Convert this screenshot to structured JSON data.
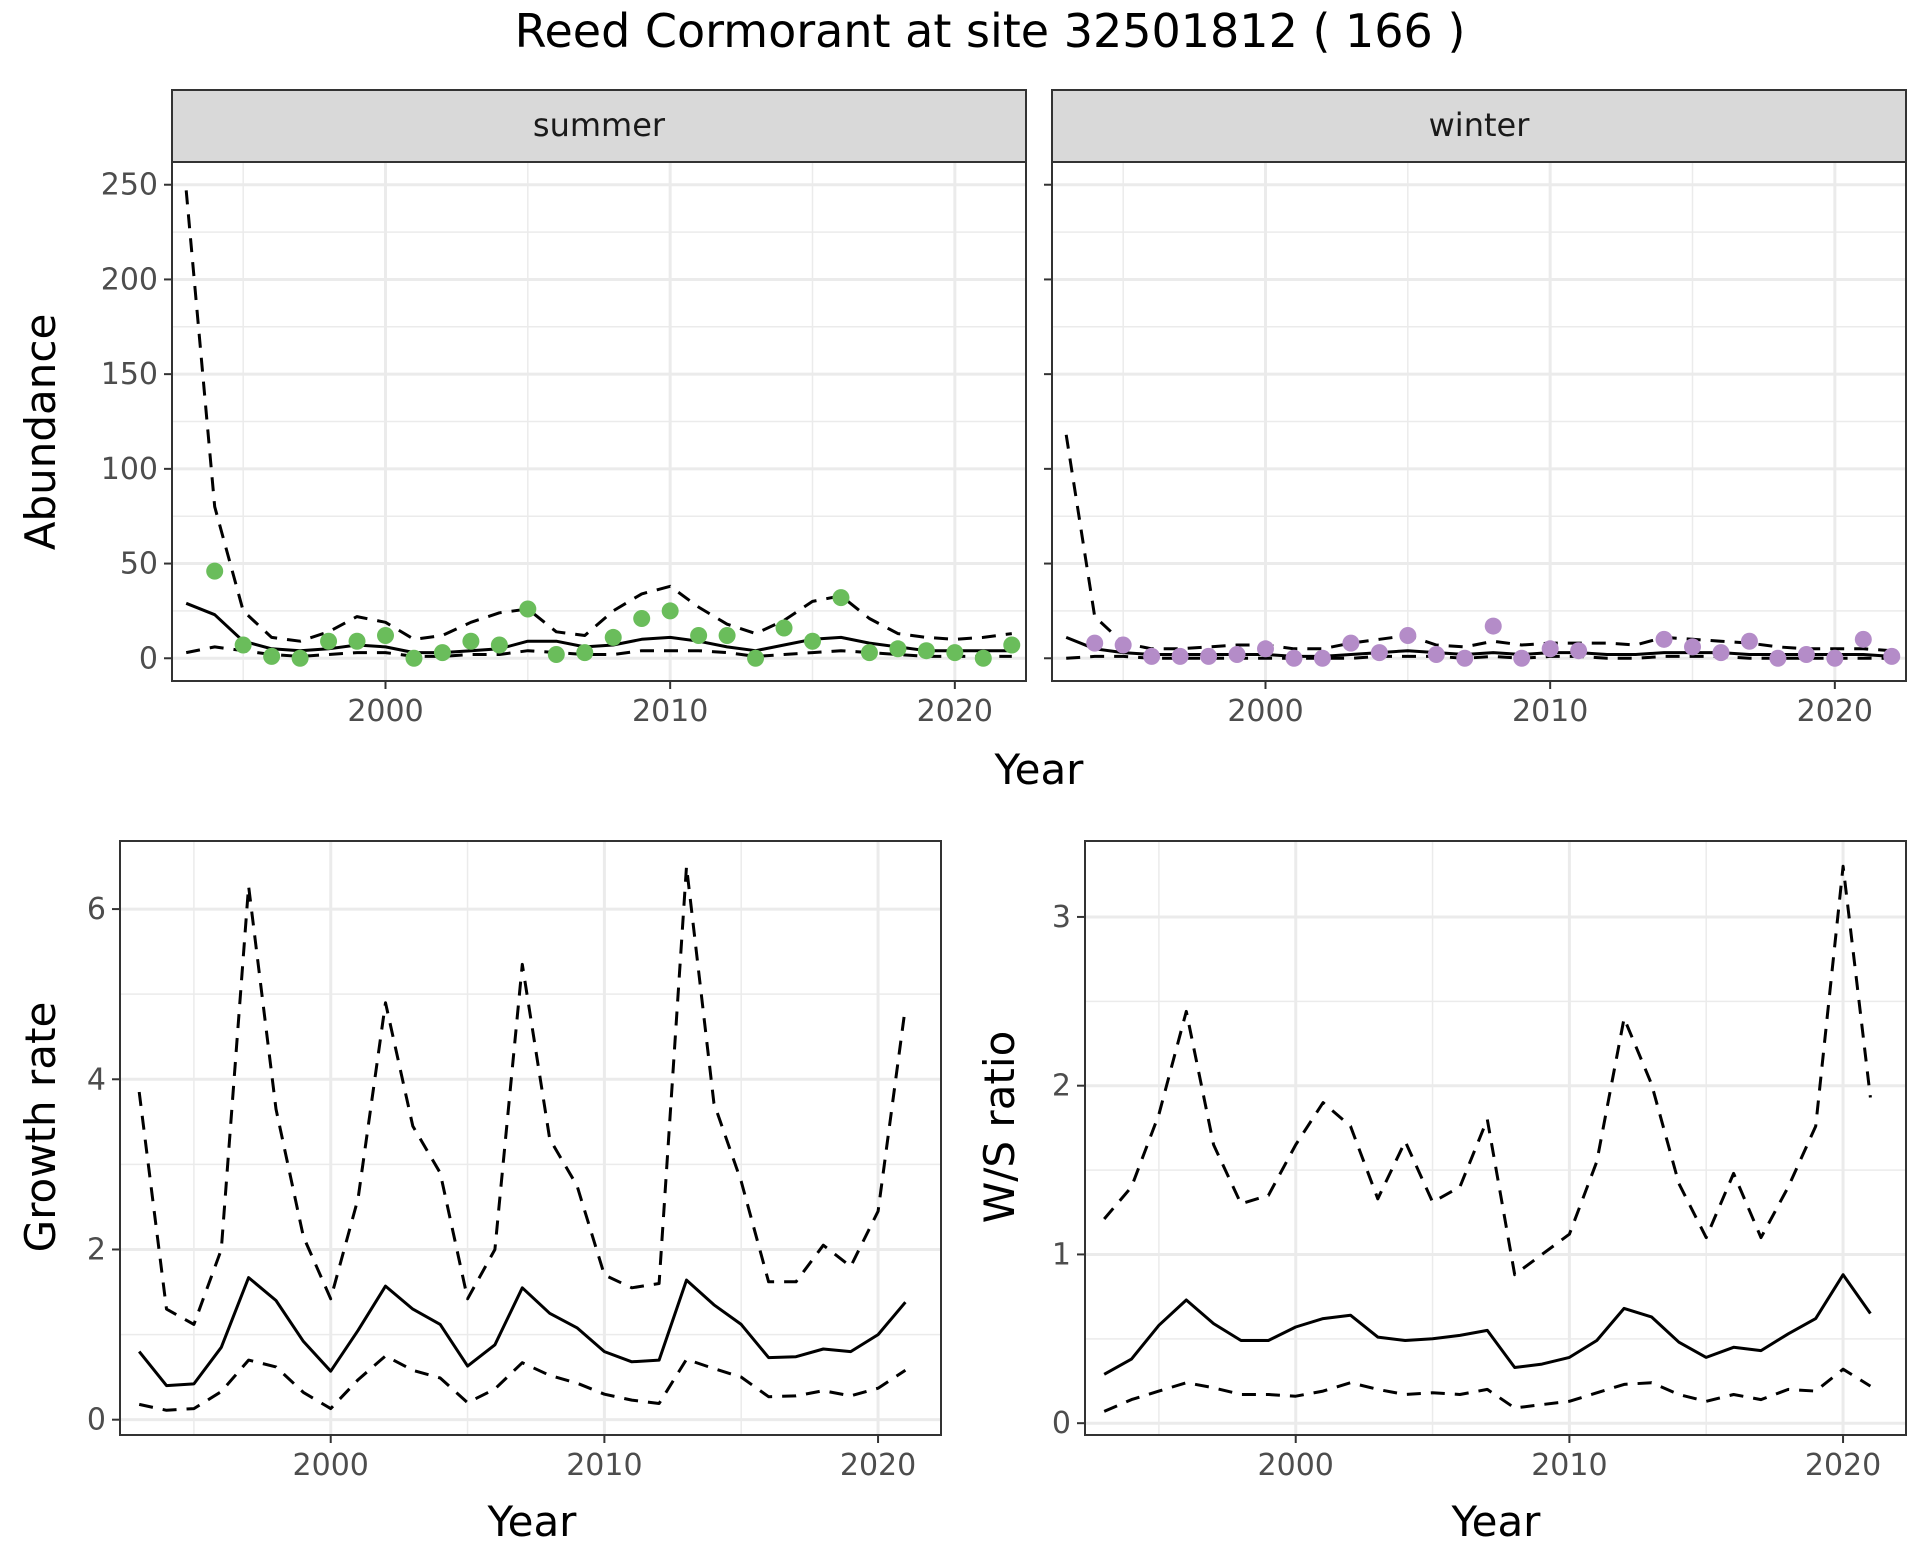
{
  "title": "Reed Cormorant at site 32501812 ( 166 )",
  "colors": {
    "summer_points": "#6ABD5B",
    "winter_points": "#B48CC8",
    "line": "#000000",
    "strip_bg": "#D9D9D9"
  },
  "chart_data": [
    {
      "type": "line",
      "facet": "summer",
      "xlabel": "Year",
      "ylabel": "Abundance",
      "xlim": [
        1992.5,
        2022.5
      ],
      "ylim": [
        -12,
        262
      ],
      "x_ticks": [
        2000,
        2010,
        2020
      ],
      "x_tick_labels": [
        "2000",
        "2010",
        "2020"
      ],
      "y_ticks": [
        0,
        50,
        100,
        150,
        200,
        250
      ],
      "y_tick_labels": [
        "0",
        "50",
        "100",
        "150",
        "200",
        "250"
      ],
      "grid": true,
      "x": [
        1993,
        1994,
        1995,
        1996,
        1997,
        1998,
        1999,
        2000,
        2001,
        2002,
        2003,
        2004,
        2005,
        2006,
        2007,
        2008,
        2009,
        2010,
        2011,
        2012,
        2013,
        2014,
        2015,
        2016,
        2017,
        2018,
        2019,
        2020,
        2021,
        2022
      ],
      "series": [
        {
          "role": "estimate",
          "style": "solid",
          "values": [
            29,
            23,
            9,
            5,
            4,
            5,
            7,
            6,
            3,
            3,
            4,
            5,
            9,
            9,
            6,
            7,
            10,
            11,
            9,
            6,
            4,
            7,
            10,
            11,
            8,
            6,
            4,
            4,
            4,
            4
          ]
        },
        {
          "role": "upper",
          "style": "dashed",
          "values": [
            247,
            80,
            25,
            11,
            9,
            14,
            22,
            19,
            10,
            12,
            19,
            24,
            26,
            14,
            12,
            25,
            34,
            38,
            27,
            18,
            13,
            20,
            30,
            33,
            21,
            13,
            11,
            10,
            11,
            13
          ]
        },
        {
          "role": "lower",
          "style": "dashed",
          "values": [
            3,
            6,
            4,
            2,
            1,
            2,
            3,
            3,
            1,
            1,
            2,
            2,
            4,
            3,
            2,
            2,
            4,
            4,
            4,
            3,
            1,
            2,
            3,
            4,
            3,
            2,
            1,
            1,
            1,
            1
          ]
        }
      ],
      "points": {
        "x": [
          1994,
          1995,
          1996,
          1997,
          1998,
          1999,
          2000,
          2001,
          2002,
          2003,
          2004,
          2005,
          2006,
          2007,
          2008,
          2009,
          2010,
          2011,
          2012,
          2013,
          2014,
          2015,
          2016,
          2017,
          2018,
          2019,
          2020,
          2021,
          2022
        ],
        "y": [
          46,
          7,
          1,
          0,
          9,
          9,
          12,
          0,
          3,
          9,
          7,
          26,
          2,
          3,
          11,
          21,
          25,
          12,
          12,
          0,
          16,
          9,
          32,
          3,
          5,
          4,
          3,
          0,
          7
        ]
      }
    },
    {
      "type": "line",
      "facet": "winter",
      "xlabel": "Year",
      "ylabel": "Abundance",
      "xlim": [
        1992.5,
        2022.5
      ],
      "ylim": [
        -12,
        262
      ],
      "x_ticks": [
        2000,
        2010,
        2020
      ],
      "x_tick_labels": [
        "2000",
        "2010",
        "2020"
      ],
      "y_ticks": [
        0,
        50,
        100,
        150,
        200,
        250
      ],
      "grid": true,
      "x": [
        1993,
        1994,
        1995,
        1996,
        1997,
        1998,
        1999,
        2000,
        2001,
        2002,
        2003,
        2004,
        2005,
        2006,
        2007,
        2008,
        2009,
        2010,
        2011,
        2012,
        2013,
        2014,
        2015,
        2016,
        2017,
        2018,
        2019,
        2020,
        2021,
        2022
      ],
      "series": [
        {
          "role": "estimate",
          "style": "solid",
          "values": [
            11,
            5,
            3,
            2,
            2,
            2,
            2,
            2,
            1,
            1,
            2,
            3,
            4,
            3,
            2,
            3,
            2,
            3,
            3,
            2,
            2,
            3,
            3,
            3,
            2,
            2,
            2,
            2,
            2,
            1
          ]
        },
        {
          "role": "upper",
          "style": "dashed",
          "values": [
            118,
            22,
            8,
            5,
            5,
            6,
            7,
            7,
            5,
            5,
            8,
            10,
            12,
            7,
            6,
            9,
            7,
            8,
            8,
            8,
            7,
            11,
            10,
            9,
            8,
            6,
            5,
            5,
            5,
            4
          ]
        },
        {
          "role": "lower",
          "style": "dashed",
          "values": [
            0,
            1,
            1,
            0,
            0,
            0,
            0,
            0,
            0,
            0,
            0,
            1,
            1,
            1,
            0,
            1,
            0,
            1,
            1,
            0,
            0,
            1,
            1,
            1,
            0,
            0,
            0,
            0,
            0,
            0
          ]
        }
      ],
      "points": {
        "x": [
          1994,
          1995,
          1996,
          1997,
          1998,
          1999,
          2000,
          2001,
          2002,
          2003,
          2004,
          2005,
          2006,
          2007,
          2008,
          2009,
          2010,
          2011,
          2014,
          2015,
          2016,
          2017,
          2018,
          2019,
          2020,
          2021,
          2022
        ],
        "y": [
          8,
          7,
          1,
          1,
          1,
          2,
          5,
          0,
          0,
          8,
          3,
          12,
          2,
          0,
          17,
          0,
          5,
          4,
          10,
          6,
          3,
          9,
          0,
          2,
          0,
          10,
          1
        ]
      }
    },
    {
      "type": "line",
      "xlabel": "Year",
      "ylabel": "Growth rate",
      "xlim": [
        1992.3,
        2022.3
      ],
      "ylim": [
        -0.18,
        6.8
      ],
      "x_ticks": [
        2000,
        2010,
        2020
      ],
      "x_tick_labels": [
        "2000",
        "2010",
        "2020"
      ],
      "y_ticks": [
        0,
        2,
        4,
        6
      ],
      "y_tick_labels": [
        "0",
        "2",
        "4",
        "6"
      ],
      "grid": true,
      "x": [
        1993,
        1994,
        1995,
        1996,
        1997,
        1998,
        1999,
        2000,
        2001,
        2002,
        2003,
        2004,
        2005,
        2006,
        2007,
        2008,
        2009,
        2010,
        2011,
        2012,
        2013,
        2014,
        2015,
        2016,
        2017,
        2018,
        2019,
        2020,
        2021
      ],
      "series": [
        {
          "role": "estimate",
          "style": "solid",
          "values": [
            0.8,
            0.4,
            0.42,
            0.85,
            1.67,
            1.4,
            0.92,
            0.57,
            1.05,
            1.57,
            1.3,
            1.12,
            0.63,
            0.88,
            1.55,
            1.25,
            1.08,
            0.8,
            0.68,
            0.7,
            1.64,
            1.35,
            1.12,
            0.73,
            0.74,
            0.83,
            0.8,
            1.0,
            1.38
          ]
        },
        {
          "role": "upper",
          "style": "dashed",
          "values": [
            3.85,
            1.3,
            1.12,
            2.0,
            6.27,
            3.65,
            2.15,
            1.42,
            2.6,
            4.9,
            3.45,
            2.9,
            1.42,
            2.0,
            5.35,
            3.3,
            2.75,
            1.7,
            1.55,
            1.6,
            6.5,
            3.72,
            2.8,
            1.62,
            1.62,
            2.05,
            1.8,
            2.45,
            4.85
          ]
        },
        {
          "role": "lower",
          "style": "dashed",
          "values": [
            0.18,
            0.11,
            0.13,
            0.33,
            0.7,
            0.62,
            0.32,
            0.13,
            0.47,
            0.75,
            0.58,
            0.49,
            0.2,
            0.36,
            0.67,
            0.52,
            0.43,
            0.3,
            0.23,
            0.19,
            0.71,
            0.6,
            0.5,
            0.27,
            0.28,
            0.34,
            0.28,
            0.37,
            0.58
          ]
        }
      ]
    },
    {
      "type": "line",
      "xlabel": "Year",
      "ylabel": "W/S ratio",
      "xlim": [
        1992.3,
        2022.3
      ],
      "ylim": [
        -0.07,
        3.45
      ],
      "x_ticks": [
        2000,
        2010,
        2020
      ],
      "x_tick_labels": [
        "2000",
        "2010",
        "2020"
      ],
      "y_ticks": [
        0,
        1,
        2,
        3
      ],
      "y_tick_labels": [
        "0",
        "1",
        "2",
        "3"
      ],
      "grid": true,
      "x": [
        1993,
        1994,
        1995,
        1996,
        1997,
        1998,
        1999,
        2000,
        2001,
        2002,
        2003,
        2004,
        2005,
        2006,
        2007,
        2008,
        2009,
        2010,
        2011,
        2012,
        2013,
        2014,
        2015,
        2016,
        2017,
        2018,
        2019,
        2020,
        2021
      ],
      "series": [
        {
          "role": "estimate",
          "style": "solid",
          "values": [
            0.29,
            0.38,
            0.58,
            0.73,
            0.59,
            0.49,
            0.49,
            0.57,
            0.62,
            0.64,
            0.51,
            0.49,
            0.5,
            0.52,
            0.55,
            0.33,
            0.35,
            0.39,
            0.49,
            0.68,
            0.63,
            0.48,
            0.39,
            0.45,
            0.43,
            0.53,
            0.62,
            0.88,
            0.65
          ]
        },
        {
          "role": "upper",
          "style": "dashed",
          "values": [
            1.21,
            1.4,
            1.83,
            2.44,
            1.65,
            1.3,
            1.35,
            1.65,
            1.9,
            1.76,
            1.33,
            1.67,
            1.31,
            1.4,
            1.8,
            0.88,
            1.0,
            1.12,
            1.55,
            2.4,
            2.01,
            1.42,
            1.1,
            1.48,
            1.1,
            1.4,
            1.76,
            3.3,
            1.93
          ]
        },
        {
          "role": "lower",
          "style": "dashed",
          "values": [
            0.07,
            0.14,
            0.19,
            0.24,
            0.21,
            0.17,
            0.17,
            0.16,
            0.19,
            0.24,
            0.2,
            0.17,
            0.18,
            0.17,
            0.2,
            0.09,
            0.11,
            0.13,
            0.18,
            0.23,
            0.24,
            0.17,
            0.13,
            0.17,
            0.14,
            0.2,
            0.19,
            0.32,
            0.22
          ]
        }
      ]
    }
  ]
}
